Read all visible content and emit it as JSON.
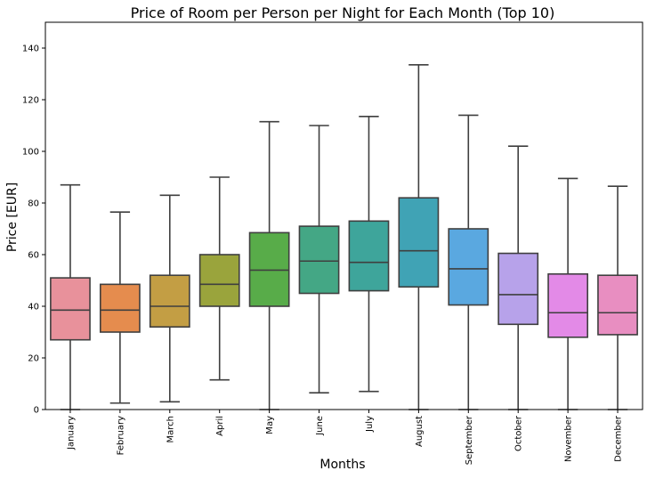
{
  "chart_data": {
    "type": "box",
    "title": "Price of Room per Person per Night for Each Month (Top 10)",
    "xlabel": "Months",
    "ylabel": "Price [EUR]",
    "ylim": [
      0,
      150
    ],
    "yticks": [
      0,
      20,
      40,
      60,
      80,
      100,
      120,
      140
    ],
    "grid": false,
    "categories": [
      "January",
      "February",
      "March",
      "April",
      "May",
      "June",
      "July",
      "August",
      "September",
      "October",
      "November",
      "December"
    ],
    "boxes": [
      {
        "whisker_low": 0,
        "q1": 27,
        "median": 38.5,
        "q3": 51,
        "whisker_high": 87,
        "color": "#e8919b"
      },
      {
        "whisker_low": 2.5,
        "q1": 30,
        "median": 38.5,
        "q3": 48.5,
        "whisker_high": 76.5,
        "color": "#e58c4e"
      },
      {
        "whisker_low": 3,
        "q1": 32,
        "median": 40,
        "q3": 52,
        "whisker_high": 83,
        "color": "#c39e44"
      },
      {
        "whisker_low": 11.5,
        "q1": 40,
        "median": 48.5,
        "q3": 60,
        "whisker_high": 90,
        "color": "#9aa43c"
      },
      {
        "whisker_low": 0,
        "q1": 40,
        "median": 54,
        "q3": 68.5,
        "whisker_high": 111.5,
        "color": "#58ac49"
      },
      {
        "whisker_low": 6.5,
        "q1": 45,
        "median": 57.5,
        "q3": 71,
        "whisker_high": 110,
        "color": "#44a785"
      },
      {
        "whisker_low": 7,
        "q1": 46,
        "median": 57,
        "q3": 73,
        "whisker_high": 113.5,
        "color": "#3ea59b"
      },
      {
        "whisker_low": 0,
        "q1": 47.5,
        "median": 61.5,
        "q3": 82,
        "whisker_high": 133.5,
        "color": "#40a3b5"
      },
      {
        "whisker_low": 0,
        "q1": 40.5,
        "median": 54.5,
        "q3": 70,
        "whisker_high": 114,
        "color": "#5aa8e0"
      },
      {
        "whisker_low": 0,
        "q1": 33,
        "median": 44.5,
        "q3": 60.5,
        "whisker_high": 102,
        "color": "#b7a2ea"
      },
      {
        "whisker_low": 0,
        "q1": 28,
        "median": 37.5,
        "q3": 52.5,
        "whisker_high": 89.5,
        "color": "#e38ae7"
      },
      {
        "whisker_low": 0,
        "q1": 29,
        "median": 37.5,
        "q3": 52,
        "whisker_high": 86.5,
        "color": "#e88ec1"
      }
    ]
  }
}
